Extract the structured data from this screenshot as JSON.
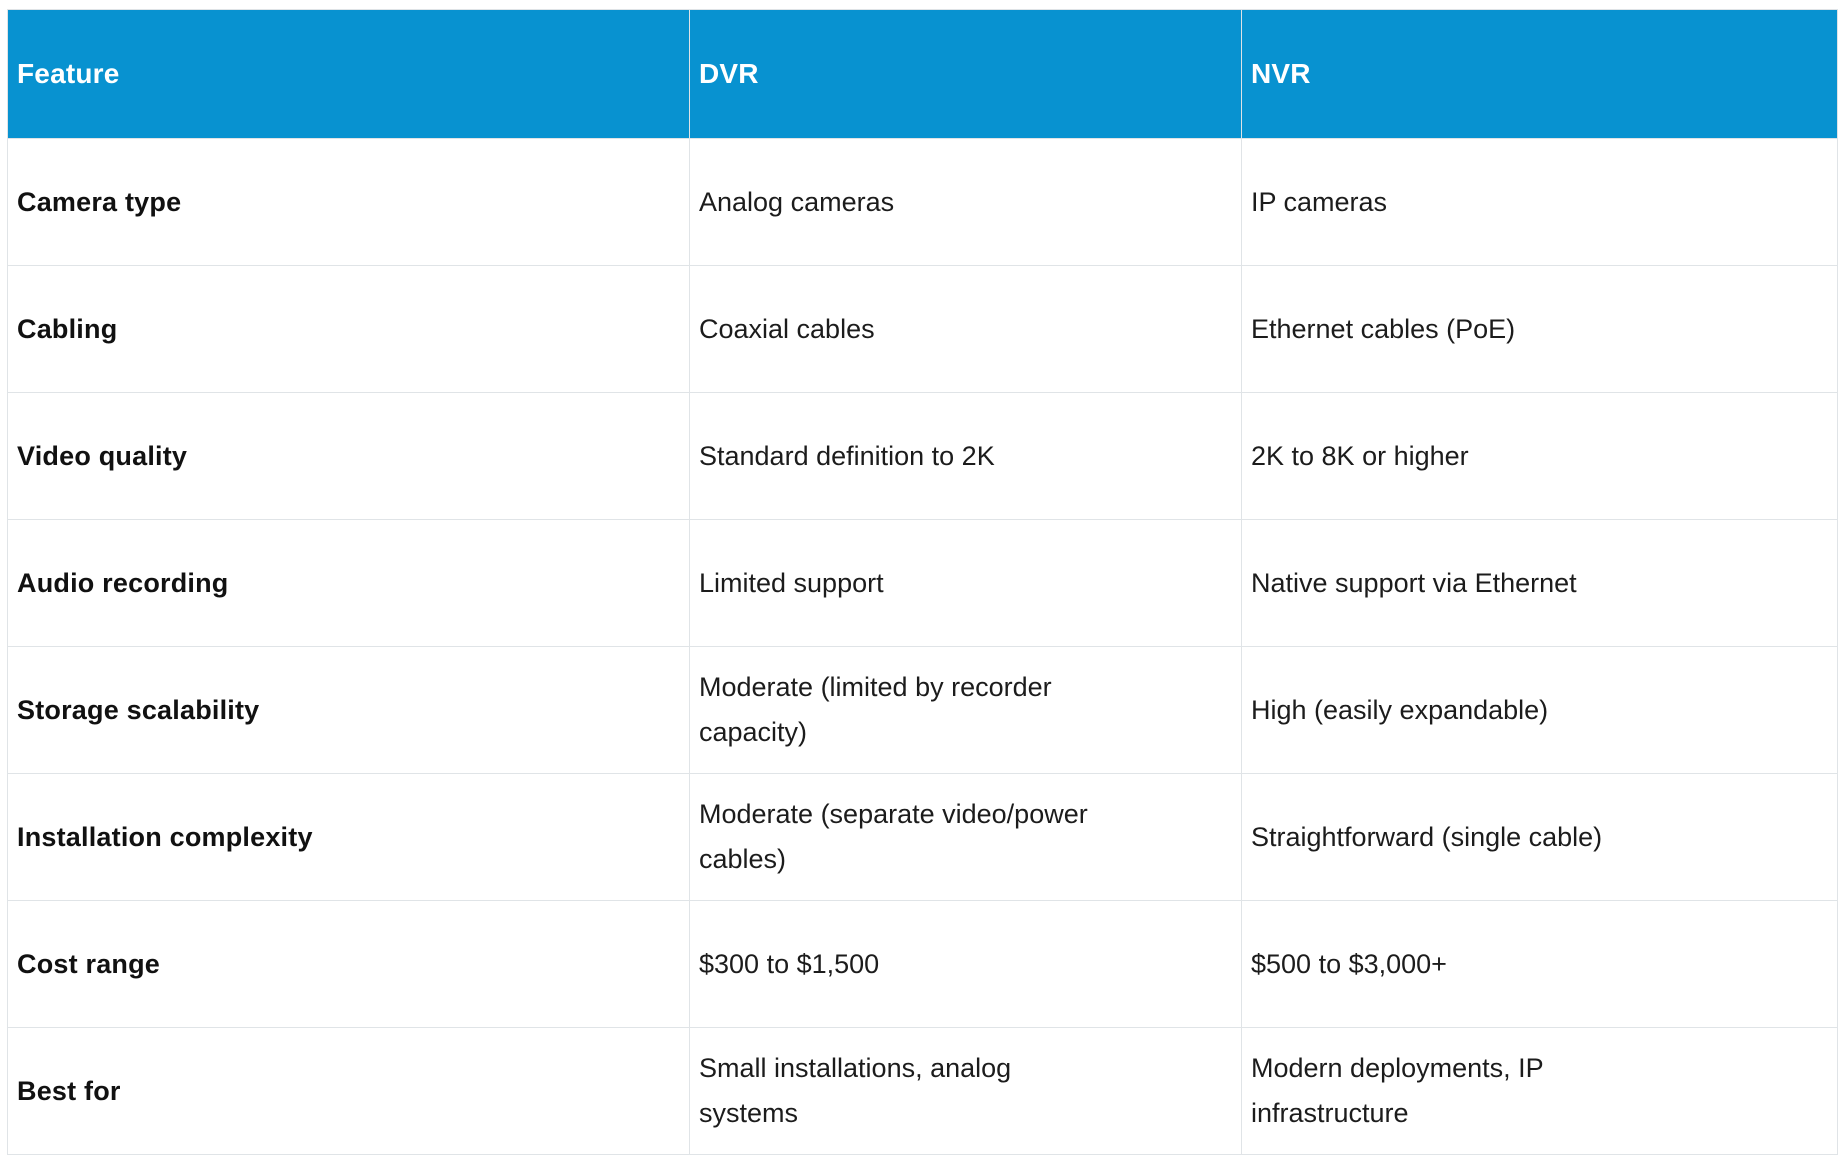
{
  "table": {
    "columns": [
      {
        "label": "Feature"
      },
      {
        "label": "DVR"
      },
      {
        "label": "NVR"
      }
    ],
    "rows": [
      {
        "feature": "Camera type",
        "dvr": "Analog cameras",
        "nvr": "IP cameras"
      },
      {
        "feature": "Cabling",
        "dvr": "Coaxial cables",
        "nvr": "Ethernet cables (PoE)"
      },
      {
        "feature": "Video quality",
        "dvr": "Standard definition to 2K",
        "nvr": "2K to 8K or higher"
      },
      {
        "feature": "Audio recording",
        "dvr": "Limited support",
        "nvr": "Native support via Ethernet"
      },
      {
        "feature": "Storage scalability",
        "dvr": "Moderate (limited by recorder\ncapacity)",
        "nvr": "High (easily expandable)"
      },
      {
        "feature": "Installation complexity",
        "dvr": "Moderate (separate video/power\ncables)",
        "nvr": "Straightforward (single cable)"
      },
      {
        "feature": "Cost range",
        "dvr": "$300 to $1,500",
        "nvr": "$500 to $3,000+"
      },
      {
        "feature": "Best for",
        "dvr": "Small installations, analog\nsystems",
        "nvr": "Modern deployments, IP\ninfrastructure"
      }
    ]
  },
  "colors": {
    "header_bg": "#0892d0",
    "header_text": "#ffffff",
    "body_text": "#1c1c1c",
    "feature_text": "#111111",
    "border": "#e0e4e7"
  }
}
